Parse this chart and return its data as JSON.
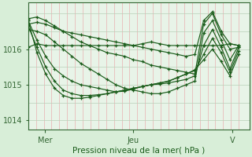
{
  "bg_color": "#d8eed8",
  "plot_bg_color": "#e8f4e8",
  "line_color": "#1a5c1a",
  "ylabel_ticks": [
    1014,
    1015,
    1016
  ],
  "xlabel": "Pression niveau de la mer( hPa )",
  "xtick_labels": [
    "Mer",
    "Jeu",
    "V"
  ],
  "xtick_positions": [
    0.08,
    0.5,
    0.97
  ],
  "ylim": [
    1013.75,
    1017.3
  ],
  "xlim": [
    0.0,
    1.05
  ],
  "series": [
    [
      1016.05,
      1016.15,
      1016.1,
      1016.1,
      1016.1,
      1016.1,
      1016.1,
      1016.1,
      1016.1,
      1016.1,
      1016.1,
      1016.1,
      1016.1,
      1016.15,
      1016.2,
      1016.15,
      1016.1,
      1016.1,
      1016.1,
      1016.1,
      1016.1,
      1016.1,
      1016.1,
      1016.15,
      1016.1
    ],
    [
      1016.7,
      1016.75,
      1016.7,
      1016.6,
      1016.5,
      1016.45,
      1016.4,
      1016.35,
      1016.3,
      1016.25,
      1016.2,
      1016.15,
      1016.1,
      1016.05,
      1016.0,
      1015.95,
      1015.9,
      1015.85,
      1015.8,
      1015.85,
      1016.8,
      1017.05,
      1016.5,
      1016.15,
      1016.1
    ],
    [
      1016.85,
      1016.9,
      1016.8,
      1016.65,
      1016.5,
      1016.35,
      1016.2,
      1016.1,
      1016.0,
      1015.9,
      1015.85,
      1015.8,
      1015.7,
      1015.65,
      1015.55,
      1015.5,
      1015.45,
      1015.4,
      1015.35,
      1015.3,
      1016.7,
      1017.0,
      1016.4,
      1016.0,
      1016.05
    ],
    [
      1016.55,
      1016.5,
      1016.4,
      1016.2,
      1016.0,
      1015.8,
      1015.6,
      1015.45,
      1015.3,
      1015.15,
      1015.0,
      1014.9,
      1014.85,
      1014.8,
      1014.75,
      1014.75,
      1014.8,
      1014.9,
      1015.0,
      1015.1,
      1016.45,
      1016.8,
      1016.25,
      1015.7,
      1016.1
    ],
    [
      1016.8,
      1016.25,
      1015.8,
      1015.45,
      1015.25,
      1015.1,
      1015.0,
      1014.95,
      1014.9,
      1014.85,
      1014.8,
      1014.82,
      1014.88,
      1014.95,
      1015.0,
      1015.02,
      1015.05,
      1015.1,
      1015.15,
      1015.25,
      1016.1,
      1016.55,
      1016.05,
      1015.45,
      1016.05
    ],
    [
      1016.65,
      1016.05,
      1015.5,
      1015.1,
      1014.85,
      1014.75,
      1014.7,
      1014.7,
      1014.72,
      1014.75,
      1014.8,
      1014.85,
      1014.9,
      1014.95,
      1015.0,
      1015.05,
      1015.1,
      1015.2,
      1015.3,
      1015.4,
      1015.85,
      1016.3,
      1015.9,
      1015.35,
      1015.95
    ],
    [
      1016.8,
      1015.9,
      1015.3,
      1014.9,
      1014.7,
      1014.62,
      1014.62,
      1014.65,
      1014.7,
      1014.75,
      1014.8,
      1014.85,
      1014.9,
      1014.95,
      1015.0,
      1015.05,
      1015.1,
      1015.2,
      1015.3,
      1015.42,
      1015.7,
      1016.0,
      1015.65,
      1015.25,
      1015.85
    ]
  ],
  "vgrid_color": "#e8b0b0",
  "hgrid_color": "#b8d0b8",
  "spine_color": "#336633",
  "tick_color": "#336633",
  "label_color": "#1a5c1a",
  "xlabel_fontsize": 7.5,
  "tick_fontsize": 7,
  "line_width": 0.85,
  "marker_size": 3.0,
  "marker_ew": 0.9
}
